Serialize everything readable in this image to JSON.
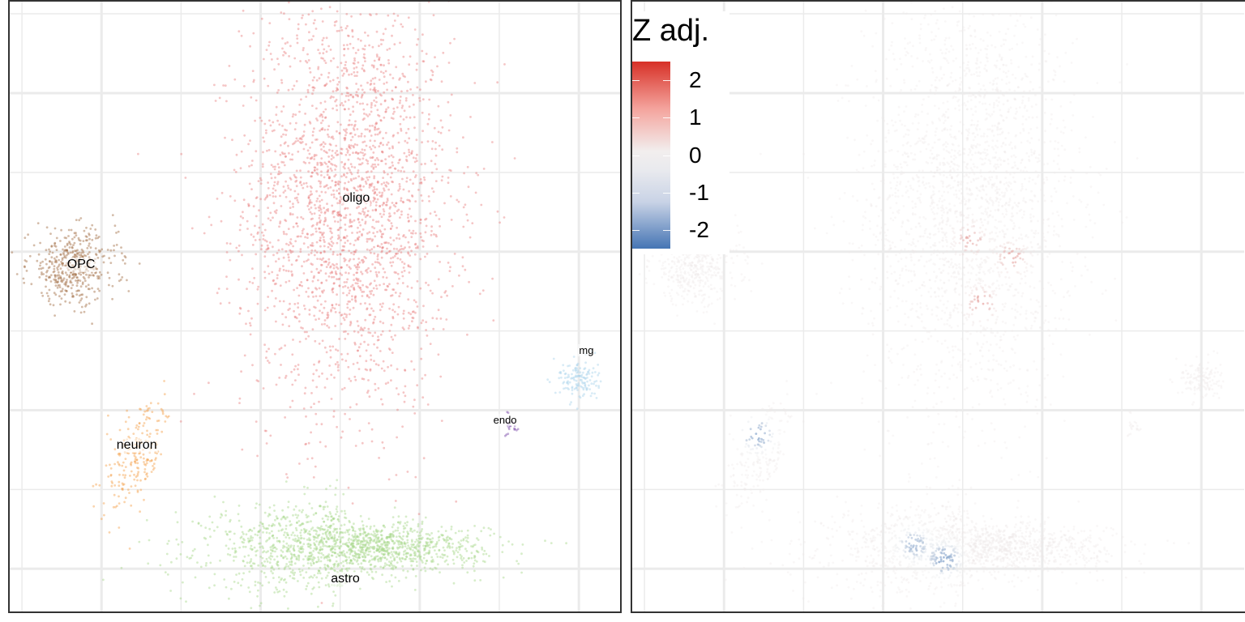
{
  "chart_data": [
    {
      "type": "scatter",
      "title": "",
      "xlabel": "",
      "ylabel": "",
      "grid": true,
      "xlim": [
        0,
        100
      ],
      "ylim": [
        0,
        100
      ],
      "clusters": [
        {
          "name": "oligo",
          "color": "#e88080",
          "x": 55.3,
          "y": 67.0,
          "sx": 8.5,
          "sy": 17.0,
          "n": 2400,
          "label": "oligo"
        },
        {
          "name": "OPC",
          "color": "#a06a40",
          "x": 10.3,
          "y": 56.5,
          "sx": 3.6,
          "sy": 3.0,
          "n": 450,
          "label": "OPC"
        },
        {
          "name": "neuron",
          "color": "#f5a04a",
          "x": 20.5,
          "y": 25.0,
          "sx": 2.2,
          "sy": 4.3,
          "n": 220,
          "label": "neuron"
        },
        {
          "name": "astro",
          "color": "#a6d88a",
          "x": 55.0,
          "y": 10.5,
          "sx": 11.0,
          "sy": 3.6,
          "n": 1600,
          "label": "astro"
        },
        {
          "name": "mg",
          "color": "#a8d2ea",
          "x": 92.9,
          "y": 38.0,
          "sx": 1.6,
          "sy": 1.7,
          "n": 140,
          "label": "mg"
        },
        {
          "name": "endo",
          "color": "#7b4aa8",
          "x": 82.2,
          "y": 30.6,
          "sx": 0.5,
          "sy": 0.9,
          "n": 20,
          "label": "endo"
        }
      ]
    },
    {
      "type": "scatter",
      "title": "",
      "xlabel": "",
      "ylabel": "",
      "grid": true,
      "xlim": [
        0,
        100
      ],
      "ylim": [
        0,
        100
      ],
      "legend": {
        "title": "Z adj.",
        "position": "top-left",
        "ticks": [
          2,
          1,
          0,
          -1,
          -2
        ],
        "range": [
          -2.5,
          2.5
        ],
        "colors": {
          "high": "#d73027",
          "mid": "#f0f0f0",
          "low": "#4575b4"
        }
      },
      "point_z": {
        "default": 0.1,
        "hotspots": [
          {
            "x": 57.0,
            "y": 50.5,
            "z": 1.1
          },
          {
            "x": 62.0,
            "y": 58.0,
            "z": 1.0
          },
          {
            "x": 55.3,
            "y": 61.0,
            "z": 0.9
          },
          {
            "x": 20.5,
            "y": 29.0,
            "z": -2.0
          },
          {
            "x": 51.0,
            "y": 8.5,
            "z": -2.0
          },
          {
            "x": 46.0,
            "y": 11.0,
            "z": -1.5
          }
        ]
      }
    }
  ]
}
